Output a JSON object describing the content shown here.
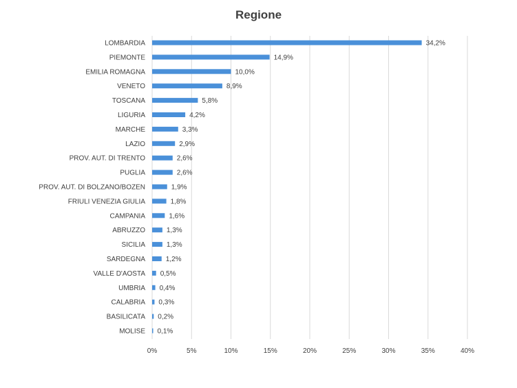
{
  "chart_data": {
    "type": "bar",
    "orientation": "horizontal",
    "title": "Regione",
    "xlabel": "",
    "ylabel": "",
    "categories": [
      "LOMBARDIA",
      "PIEMONTE",
      "EMILIA ROMAGNA",
      "VENETO",
      "TOSCANA",
      "LIGURIA",
      "MARCHE",
      "LAZIO",
      "PROV. AUT. DI TRENTO",
      "PUGLIA",
      "PROV. AUT. DI BOLZANO/BOZEN",
      "FRIULI VENEZIA GIULIA",
      "CAMPANIA",
      "ABRUZZO",
      "SICILIA",
      "SARDEGNA",
      "VALLE D'AOSTA",
      "UMBRIA",
      "CALABRIA",
      "BASILICATA",
      "MOLISE"
    ],
    "values": [
      34.2,
      14.9,
      10.0,
      8.9,
      5.8,
      4.2,
      3.3,
      2.9,
      2.6,
      2.6,
      1.9,
      1.8,
      1.6,
      1.3,
      1.3,
      1.2,
      0.5,
      0.4,
      0.3,
      0.2,
      0.1
    ],
    "data_labels": [
      "34,2%",
      "14,9%",
      "10,0%",
      "8,9%",
      "5,8%",
      "4,2%",
      "3,3%",
      "2,9%",
      "2,6%",
      "2,6%",
      "1,9%",
      "1,8%",
      "1,6%",
      "1,3%",
      "1,3%",
      "1,2%",
      "0,5%",
      "0,4%",
      "0,3%",
      "0,2%",
      "0,1%"
    ],
    "xlim": [
      0,
      40
    ],
    "x_ticks": [
      0,
      5,
      10,
      15,
      20,
      25,
      30,
      35,
      40
    ],
    "x_tick_labels": [
      "0%",
      "5%",
      "10%",
      "15%",
      "20%",
      "25%",
      "30%",
      "35%",
      "40%"
    ],
    "grid": "vertical",
    "legend": "none",
    "bar_color": "#4a90d9",
    "gridline_color": "#d9d9d9",
    "text_color": "#404040"
  }
}
